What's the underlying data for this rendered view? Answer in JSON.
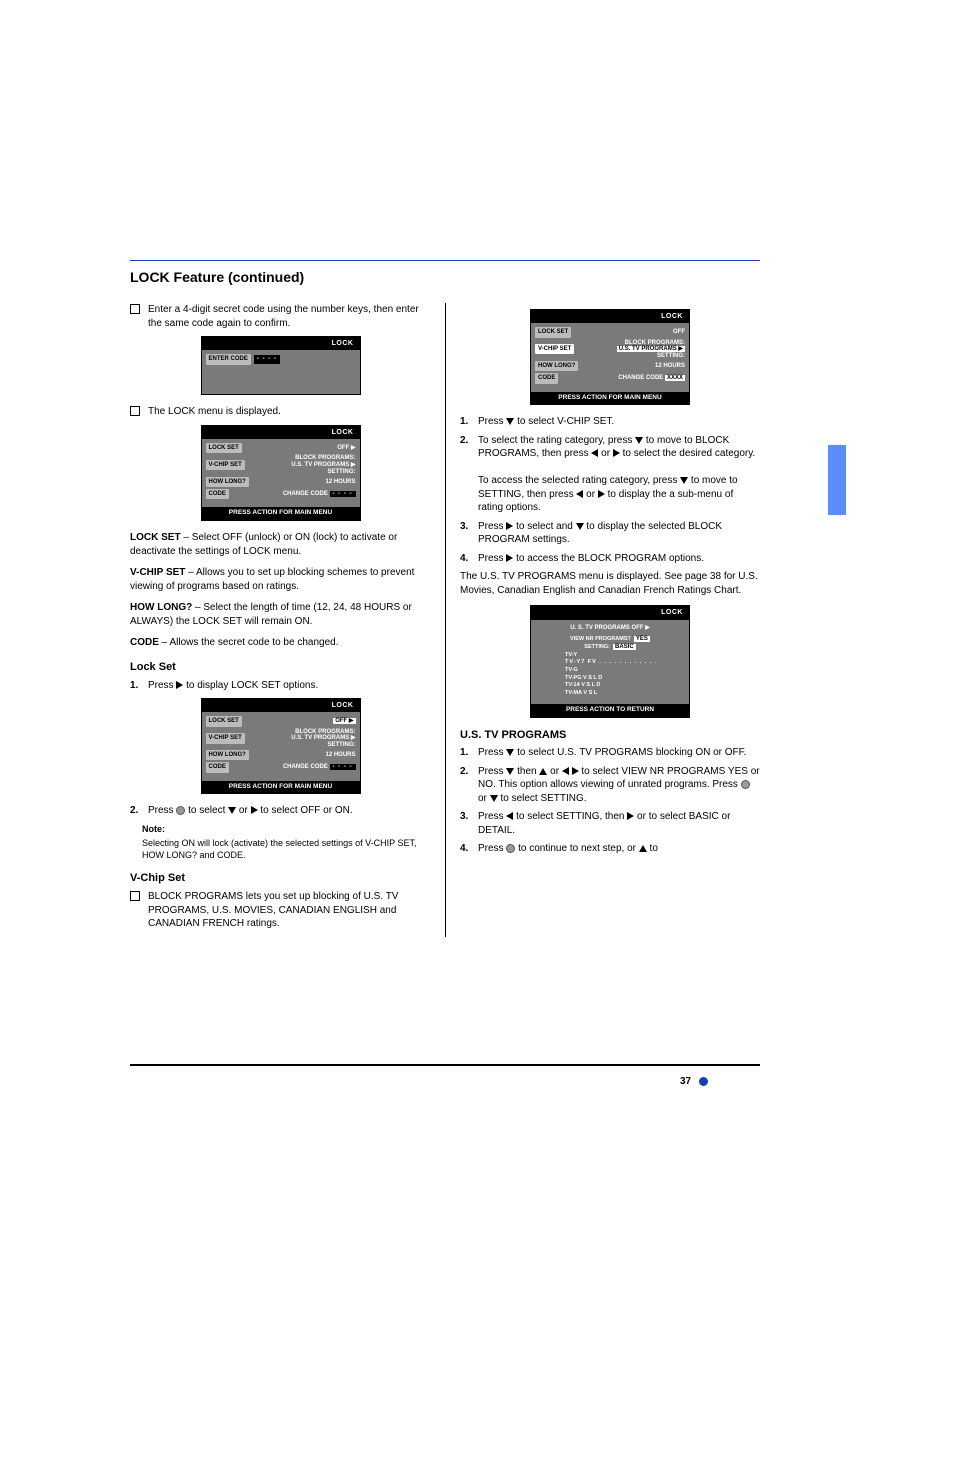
{
  "page_number": "37",
  "header_title": "LOCK Feature (continued)",
  "side_tab_color": "#5b8dff",
  "header_rule_color": "#1a3db0",
  "footer_rule_color": "#000000",
  "pagenum_bullet_color": "#1a3db0",
  "triangle_color": "#000000",
  "dot_fill": "#9a9a9a",
  "left": {
    "chk1": "Enter a 4-digit secret code using the number keys, then enter the same code again to confirm.",
    "osd_enter": {
      "title": "LOCK",
      "row_label": "ENTER CODE"
    },
    "chk2": "The LOCK menu is displayed.",
    "osd_lock": {
      "title": "LOCK",
      "lock_set": "LOCK SET",
      "lock_set_val": "OFF ▶",
      "vchip": "V-CHIP SET",
      "block": "BLOCK PROGRAMS:",
      "block_val": "U.S.  TV  PROGRAMS ▶",
      "setting": "SETTING:",
      "howlong": "HOW LONG?",
      "howlong_val": "12 HOURS",
      "code": "CODE",
      "code_val": "CHANGE CODE",
      "footer": "PRESS ACTION FOR MAIN MENU"
    },
    "p_lockset_h": "LOCK SET",
    "p_lockset": "Select OFF (unlock) or ON (lock) to activate or deactivate the settings of LOCK menu.",
    "p_vchip_h": "V-CHIP SET",
    "p_vchip": "Allows you to set up blocking schemes to prevent viewing of programs based on ratings.",
    "p_howlong_h": "HOW LONG?",
    "p_howlong": "Select the length of time (12, 24, 48 HOURS or ALWAYS) the LOCK SET will remain ON.",
    "p_code_h": "CODE",
    "p_code": "Allows the secret code to be changed.",
    "sec_lockset_h": "Lock Set",
    "step1": "Press   to display LOCK SET options.",
    "osd_lock2_footer": "PRESS ACTION FOR MAIN MENU",
    "step2": "Press   to select   or   to select OFF or ON.",
    "note_h": "Note:",
    "note_body": "Selecting ON will lock (activate) the selected settings of V-CHIP SET, HOW LONG? and CODE.",
    "sec_vchip_h": "V-Chip Set",
    "chk3": "BLOCK PROGRAMS lets you set up blocking of U.S. TV PROGRAMS, U.S. MOVIES, CANADIAN ENGLISH and CANADIAN FRENCH ratings."
  },
  "right": {
    "osd_top_footer": "PRESS ACTION FOR MAIN MENU",
    "step1": "Press   to select V-CHIP SET.",
    "step2_a": "To select the rating category, press   to move to BLOCK PROGRAMS, then press   or   to select the desired category.",
    "step2_b": "To access the selected rating category, press   to move to SETTING, then press   or   to display the a sub-menu of rating options.",
    "step3": "Press   to select and   to display the selected BLOCK PROGRAM settings.",
    "step4": "Press   to access the BLOCK PROGRAM options.",
    "p_ustv": "The U.S. TV PROGRAMS menu is displayed. See page 38 for U.S. Movies, Canadian English and Canadian French Ratings Chart.",
    "osd_prog": {
      "title": "LOCK",
      "head": "U. S. TV PROGRAMS        OFF ▶",
      "view": "VIEW NR PROGRAMS?",
      "view_val": "YES",
      "setting": "SETTING:",
      "setting_val": "BASIC",
      "r1": "TV-Y",
      "r2": "TV-Y7  FV . . . . . . . . . . . .",
      "r3": "TV-G",
      "r4": "TV-PG   V S L D",
      "r5": "TV-14    V S L D",
      "r6": "TV-MA  V S L",
      "footer": "PRESS  ACTION  TO  RETURN"
    },
    "sec_ustv_h": "U.S. TV PROGRAMS",
    "step_u1": "Press   to select U.S. TV PROGRAMS blocking ON or OFF.",
    "step_u2": "Press   then   or   to select VIEW NR PROGRAMS YES or NO. This option allows viewing of unrated programs. Press   or   to select SETTING.",
    "step_u3": "Press   to select SETTING, then   or   to select BASIC or DETAIL.",
    "step_u4": "Press   to continue to next step, or   to"
  }
}
